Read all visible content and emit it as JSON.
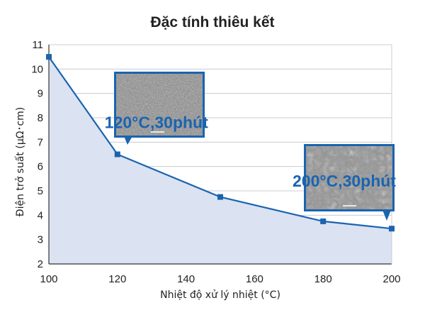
{
  "chart_data": {
    "type": "area",
    "title": "Đặc tính thiêu kết",
    "xlabel": "Nhiệt độ xử lý nhiệt (°C)",
    "ylabel": "Điện trở suất (μΩ･cm)",
    "x": [
      100,
      120,
      150,
      180,
      200
    ],
    "series": [
      {
        "values": [
          10.5,
          6.5,
          4.75,
          3.75,
          3.45
        ]
      }
    ],
    "xlim": [
      100,
      200
    ],
    "ylim": [
      2,
      11
    ],
    "xticks": [
      100,
      120,
      140,
      160,
      180,
      200
    ],
    "yticks": [
      2,
      3,
      4,
      5,
      6,
      7,
      8,
      9,
      10,
      11
    ],
    "grid": "horizontal",
    "annotations": [
      {
        "text": "120°C,30phút",
        "x": 120,
        "y": 6.5
      },
      {
        "text": "200°C,30phút",
        "x": 200,
        "y": 3.45
      }
    ],
    "colors": {
      "line": "#1a64b0",
      "fill": "#dbe2f2",
      "grid": "#c8ccd4",
      "inset_border": "#1a64b0"
    }
  }
}
